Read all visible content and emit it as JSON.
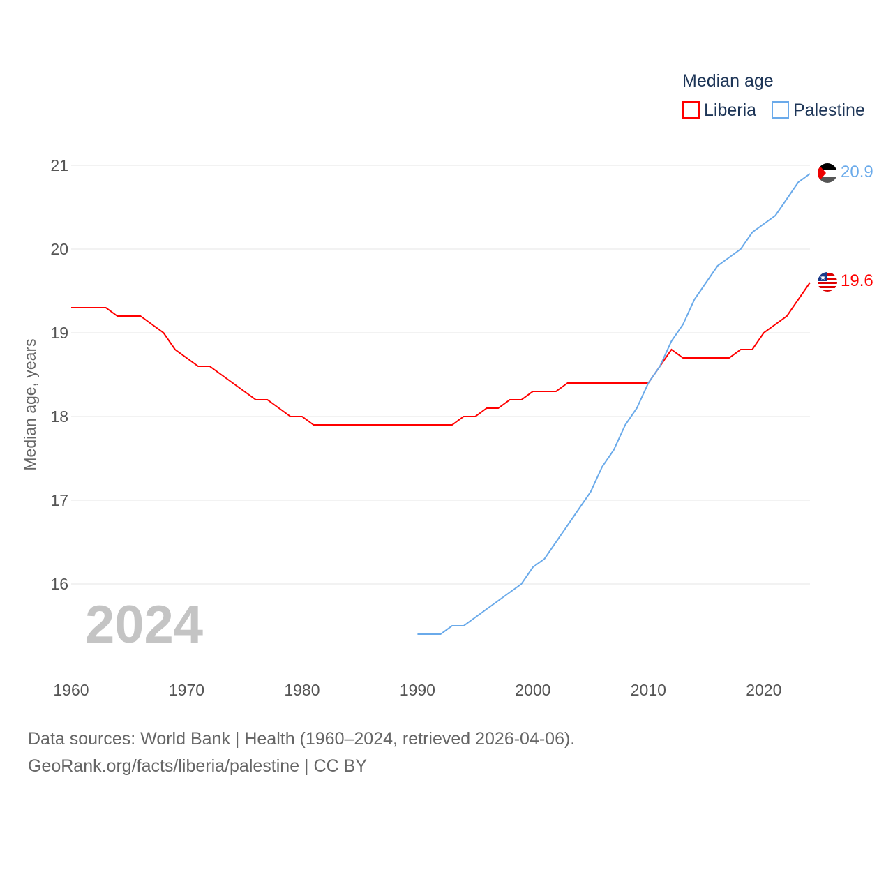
{
  "chart_data": {
    "type": "line",
    "title": "",
    "legend_title": "Median age",
    "legend_position": "top-right",
    "ylabel": "Median age, years",
    "xlabel": "",
    "xlim": [
      1960,
      2024
    ],
    "ylim": [
      15,
      21
    ],
    "xticks": [
      "1960",
      "1970",
      "1980",
      "1990",
      "2000",
      "2010",
      "2020"
    ],
    "yticks": [
      "16",
      "17",
      "18",
      "19",
      "20",
      "21"
    ],
    "grid": true,
    "year_watermark": "2024",
    "series": [
      {
        "name": "Liberia",
        "color": "#ff0000",
        "end_label": "19.6",
        "x": [
          1960,
          1961,
          1962,
          1963,
          1964,
          1965,
          1966,
          1967,
          1968,
          1969,
          1970,
          1971,
          1972,
          1973,
          1974,
          1975,
          1976,
          1977,
          1978,
          1979,
          1980,
          1981,
          1982,
          1983,
          1984,
          1985,
          1986,
          1987,
          1988,
          1989,
          1990,
          1991,
          1992,
          1993,
          1994,
          1995,
          1996,
          1997,
          1998,
          1999,
          2000,
          2001,
          2002,
          2003,
          2004,
          2005,
          2006,
          2007,
          2008,
          2009,
          2010,
          2011,
          2012,
          2013,
          2014,
          2015,
          2016,
          2017,
          2018,
          2019,
          2020,
          2021,
          2022,
          2023,
          2024
        ],
        "values": [
          19.3,
          19.3,
          19.3,
          19.3,
          19.2,
          19.2,
          19.2,
          19.1,
          19.0,
          18.8,
          18.7,
          18.6,
          18.6,
          18.5,
          18.4,
          18.3,
          18.2,
          18.2,
          18.1,
          18.0,
          18.0,
          17.9,
          17.9,
          17.9,
          17.9,
          17.9,
          17.9,
          17.9,
          17.9,
          17.9,
          17.9,
          17.9,
          17.9,
          17.9,
          18.0,
          18.0,
          18.1,
          18.1,
          18.2,
          18.2,
          18.3,
          18.3,
          18.3,
          18.4,
          18.4,
          18.4,
          18.4,
          18.4,
          18.4,
          18.4,
          18.4,
          18.6,
          18.8,
          18.7,
          18.7,
          18.7,
          18.7,
          18.7,
          18.8,
          18.8,
          19.0,
          19.1,
          19.2,
          19.4,
          19.6
        ]
      },
      {
        "name": "Palestine",
        "color": "#6aaaea",
        "end_label": "20.9",
        "x": [
          1990,
          1991,
          1992,
          1993,
          1994,
          1995,
          1996,
          1997,
          1998,
          1999,
          2000,
          2001,
          2002,
          2003,
          2004,
          2005,
          2006,
          2007,
          2008,
          2009,
          2010,
          2011,
          2012,
          2013,
          2014,
          2015,
          2016,
          2017,
          2018,
          2019,
          2020,
          2021,
          2022,
          2023,
          2024
        ],
        "values": [
          15.4,
          15.4,
          15.4,
          15.5,
          15.5,
          15.6,
          15.7,
          15.8,
          15.9,
          16.0,
          16.2,
          16.3,
          16.5,
          16.7,
          16.9,
          17.1,
          17.4,
          17.6,
          17.9,
          18.1,
          18.4,
          18.6,
          18.9,
          19.1,
          19.4,
          19.6,
          19.8,
          19.9,
          20.0,
          20.2,
          20.3,
          20.4,
          20.6,
          20.8,
          20.9
        ]
      }
    ]
  },
  "footer": {
    "line1": "Data sources: World Bank | Health (1960–2024, retrieved 2026-04-06).",
    "line2": "GeoRank.org/facts/liberia/palestine | CC BY"
  }
}
